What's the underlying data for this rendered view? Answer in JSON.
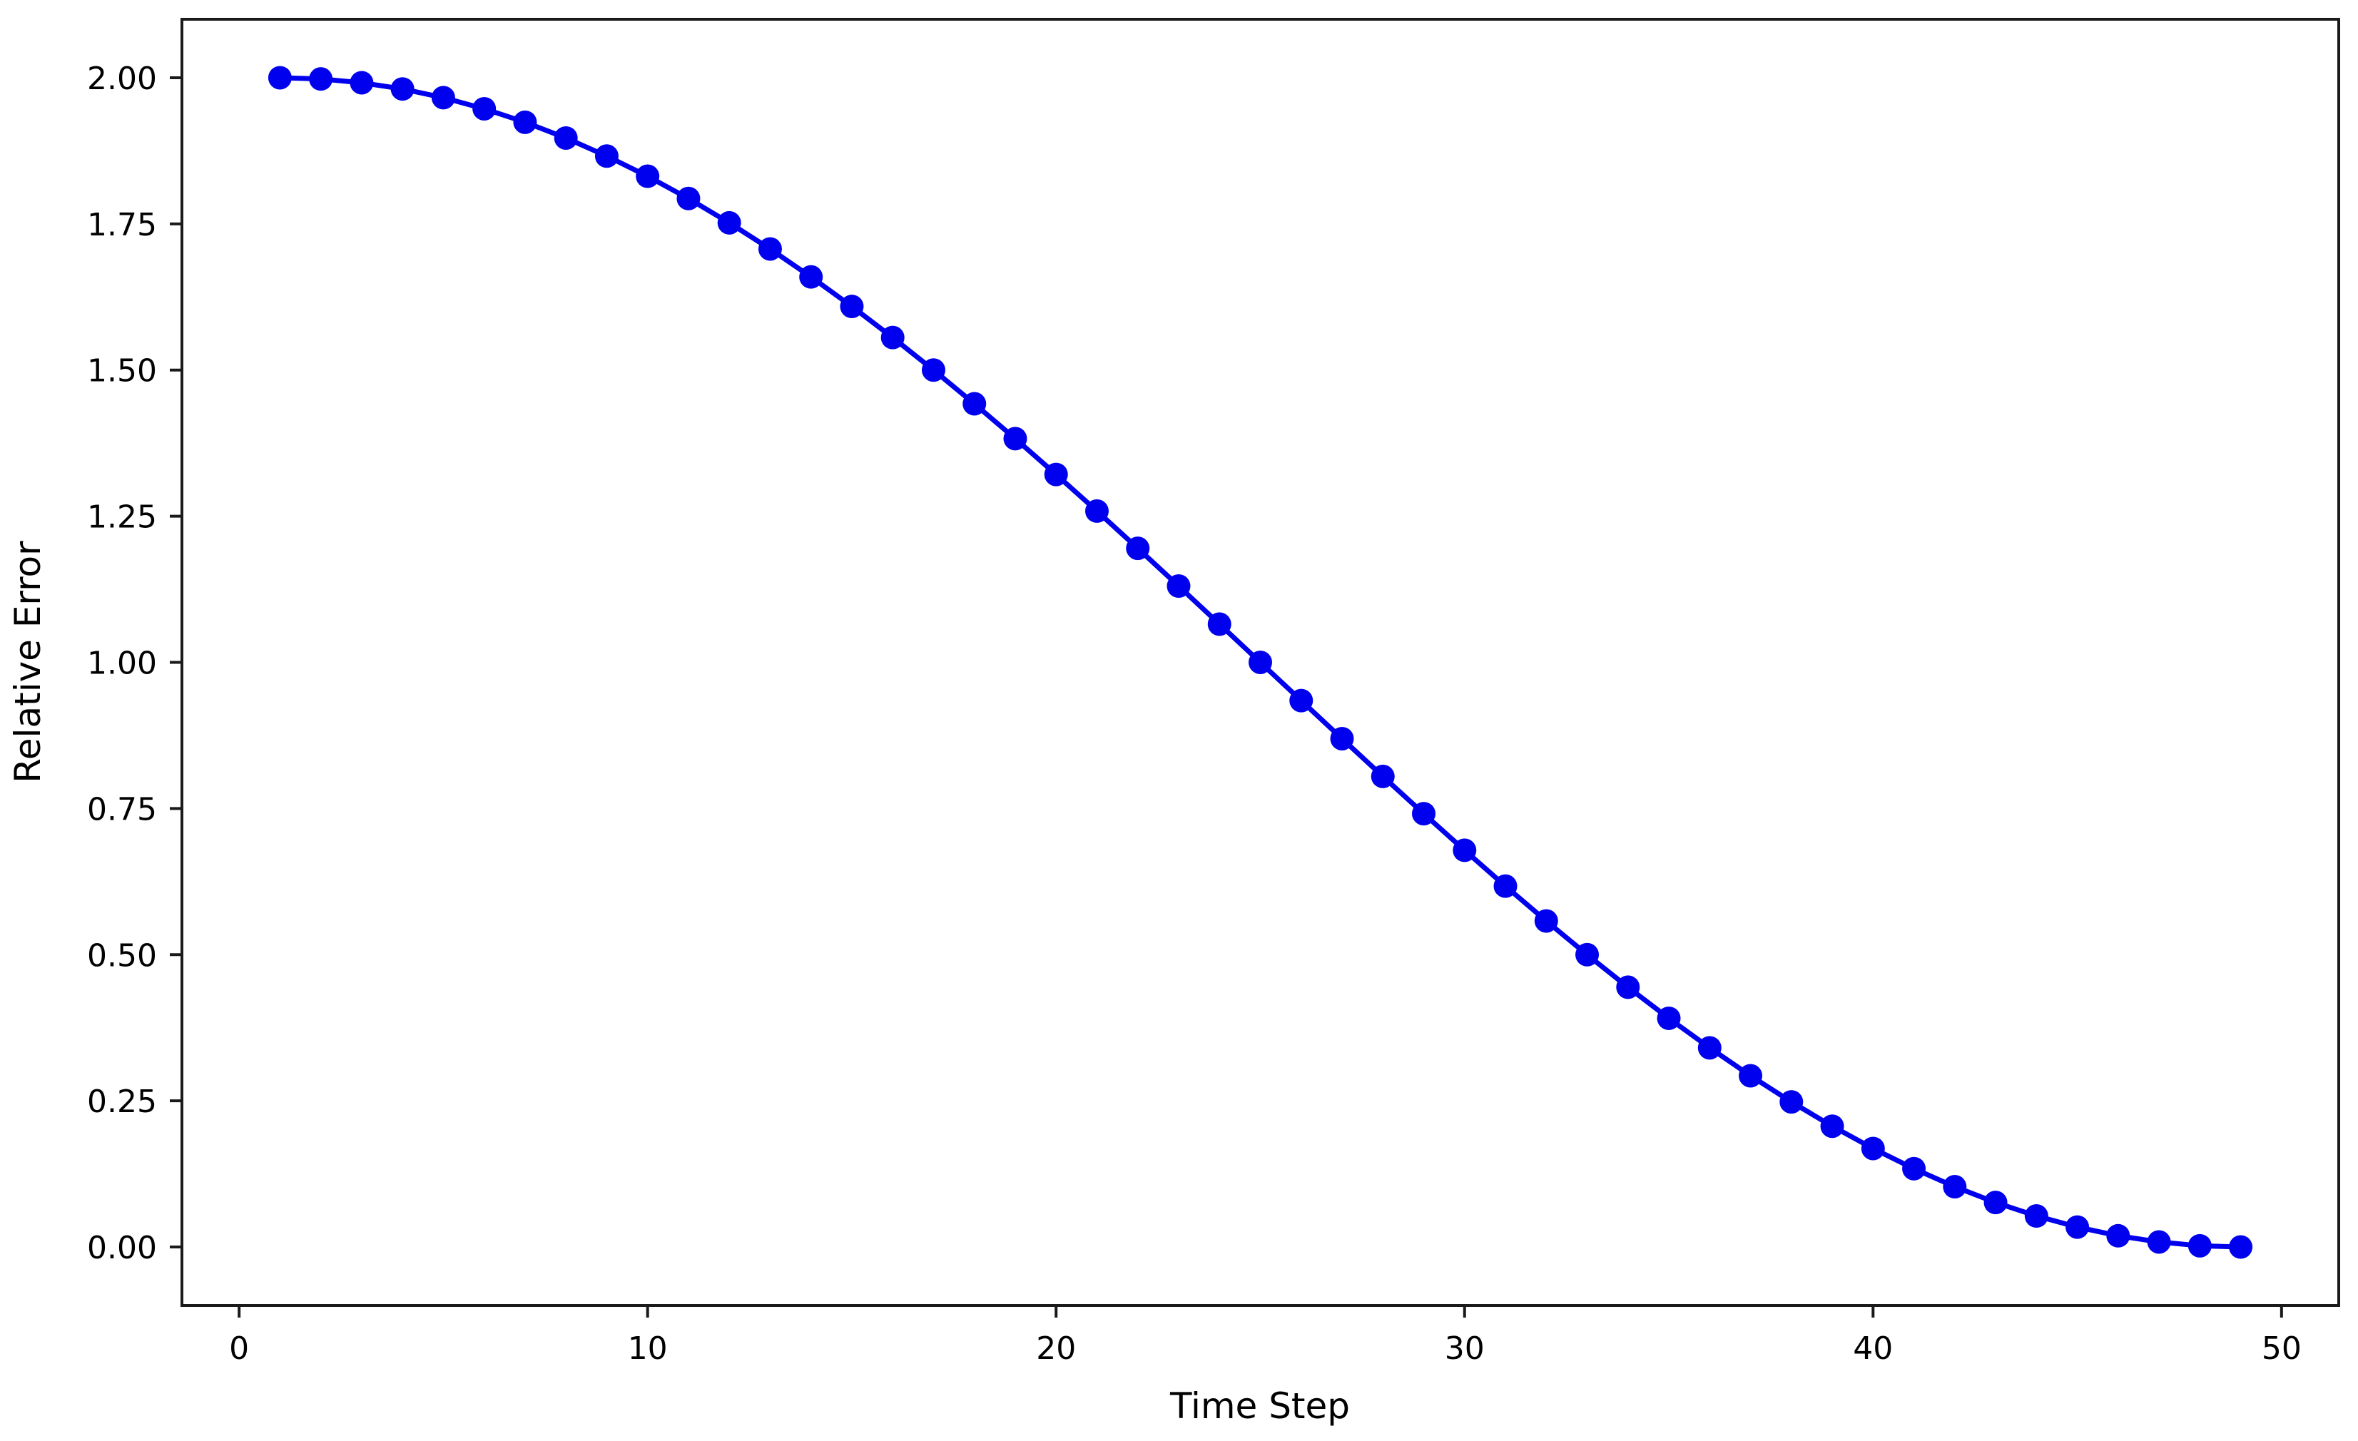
{
  "figure": {
    "background": "#ffffff",
    "spine_color": "#1a1a1a",
    "text_color": "#000000"
  },
  "chart_data": {
    "type": "line",
    "title": "",
    "xlabel": "Time Step",
    "ylabel": "Relative Error",
    "line_color": "#0000ee",
    "marker_color": "#0000ee",
    "marker": "circle",
    "grid": false,
    "legend": null,
    "xlim": [
      -1.4,
      51.4
    ],
    "ylim": [
      -0.1,
      2.1
    ],
    "x_ticks": [
      0,
      10,
      20,
      30,
      40,
      50
    ],
    "x_tick_labels": [
      "0",
      "10",
      "20",
      "30",
      "40",
      "50"
    ],
    "y_ticks": [
      0.0,
      0.25,
      0.5,
      0.75,
      1.0,
      1.25,
      1.5,
      1.75,
      2.0
    ],
    "y_tick_labels": [
      "0.00",
      "0.25",
      "0.50",
      "0.75",
      "1.00",
      "1.25",
      "1.50",
      "1.75",
      "2.00"
    ],
    "x": [
      1,
      2,
      3,
      4,
      5,
      6,
      7,
      8,
      9,
      10,
      11,
      12,
      13,
      14,
      15,
      16,
      17,
      18,
      19,
      20,
      21,
      22,
      23,
      24,
      25,
      26,
      27,
      28,
      29,
      30,
      31,
      32,
      33,
      34,
      35,
      36,
      37,
      38,
      39,
      40,
      41,
      42,
      43,
      44,
      45,
      46,
      47,
      48,
      49
    ],
    "y": [
      2.0,
      1.9979,
      1.9914,
      1.9808,
      1.9659,
      1.9469,
      1.9239,
      1.8969,
      1.866,
      1.8315,
      1.7934,
      1.7518,
      1.7071,
      1.6593,
      1.6088,
      1.5556,
      1.5,
      1.4423,
      1.3827,
      1.3214,
      1.2588,
      1.1951,
      1.1305,
      1.0654,
      1.0,
      0.9346,
      0.8695,
      0.8049,
      0.7412,
      0.6786,
      0.6173,
      0.5577,
      0.5,
      0.4444,
      0.3912,
      0.3407,
      0.2929,
      0.2482,
      0.2066,
      0.1685,
      0.134,
      0.1031,
      0.0761,
      0.0531,
      0.0341,
      0.0192,
      0.0086,
      0.0021,
      0.0
    ]
  }
}
